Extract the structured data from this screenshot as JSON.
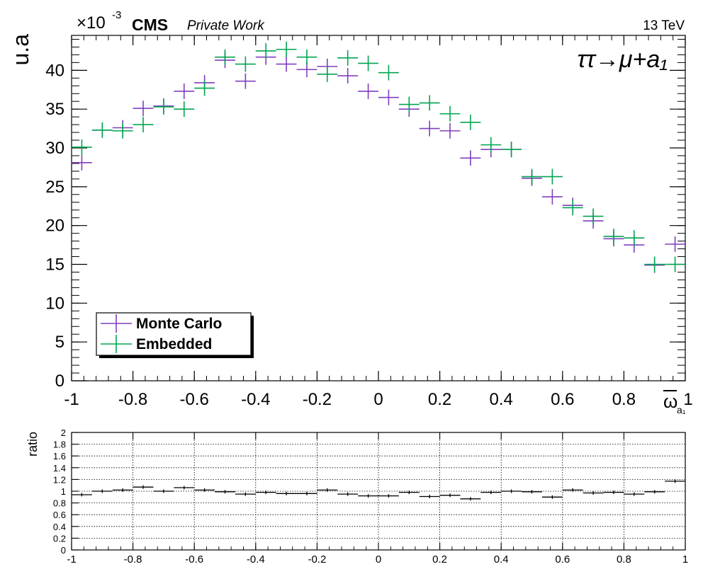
{
  "header": {
    "exponent_base": "×10",
    "exponent_power": "-3",
    "experiment": "CMS",
    "experiment_note": "Private Work",
    "energy": "13 TeV",
    "process_label": "ττ→μ+a₁"
  },
  "colors": {
    "monte_carlo": "#7f3fbf",
    "embedded": "#00a550",
    "ratio": "#000000"
  },
  "chart_data": [
    {
      "type": "scatter",
      "style": "histogram-errorbars",
      "ylabel": "u.a",
      "xlabel_main": "ω",
      "xlabel_sub": "a₁",
      "xlim": [
        -1,
        1
      ],
      "ylim": [
        0,
        44.5
      ],
      "x_ticks": [
        -1,
        -0.8,
        -0.6,
        -0.4,
        -0.2,
        0,
        0.2,
        0.4,
        0.6,
        0.8,
        1
      ],
      "x_tick_labels": [
        "-1",
        "-0.8",
        "-0.6",
        "-0.4",
        "-0.2",
        "0",
        "0.2",
        "0.4",
        "0.6",
        "0.8",
        "1"
      ],
      "y_ticks": [
        0,
        5,
        10,
        15,
        20,
        25,
        30,
        35,
        40
      ],
      "y_tick_labels": [
        "0",
        "5",
        "10",
        "15",
        "20",
        "25",
        "30",
        "35",
        "40"
      ],
      "grid": false,
      "legend_placement": "bottom-left",
      "x": [
        -0.9667,
        -0.9,
        -0.8333,
        -0.7667,
        -0.7,
        -0.6333,
        -0.5667,
        -0.5,
        -0.4333,
        -0.3667,
        -0.3,
        -0.2333,
        -0.1667,
        -0.1,
        -0.0333,
        0.0333,
        0.1,
        0.1667,
        0.2333,
        0.3,
        0.3667,
        0.4333,
        0.5,
        0.5667,
        0.6333,
        0.7,
        0.7667,
        0.8333,
        0.9,
        0.9667
      ],
      "series": [
        {
          "name": "Monte Carlo",
          "values": [
            28.1,
            32.3,
            32.6,
            35.1,
            35.4,
            37.3,
            38.4,
            41.3,
            38.6,
            41.7,
            40.8,
            40.1,
            40.5,
            39.3,
            37.3,
            36.5,
            35.0,
            32.5,
            32.2,
            28.7,
            29.8,
            29.8,
            26.1,
            23.7,
            22.6,
            20.6,
            18.3,
            17.5,
            14.9,
            17.6
          ],
          "errors": [
            1.0,
            1.0,
            1.0,
            1.0,
            1.0,
            1.0,
            1.0,
            1.0,
            1.0,
            1.0,
            1.0,
            1.0,
            1.0,
            1.0,
            1.0,
            1.0,
            1.0,
            1.0,
            1.0,
            1.0,
            1.0,
            1.0,
            1.0,
            1.0,
            1.0,
            1.0,
            1.0,
            1.0,
            1.0,
            1.0
          ]
        },
        {
          "name": "Embedded",
          "values": [
            30.1,
            32.3,
            32.2,
            33.0,
            35.3,
            35.0,
            37.7,
            41.7,
            40.8,
            42.5,
            42.7,
            41.7,
            39.5,
            41.6,
            40.9,
            39.7,
            35.6,
            35.8,
            34.4,
            33.3,
            30.4,
            29.8,
            26.3,
            26.3,
            22.3,
            21.2,
            18.6,
            18.4,
            15.0,
            15.0
          ],
          "errors": [
            1.0,
            1.0,
            1.0,
            1.0,
            1.0,
            1.0,
            1.0,
            1.0,
            1.0,
            1.0,
            1.0,
            1.0,
            1.0,
            1.0,
            1.0,
            1.0,
            1.0,
            1.0,
            1.0,
            1.0,
            1.0,
            1.0,
            1.0,
            1.0,
            1.0,
            1.0,
            1.0,
            1.0,
            1.0,
            1.0
          ]
        }
      ]
    },
    {
      "type": "scatter",
      "style": "histogram-errorbars",
      "ylabel": "ratio",
      "xlim": [
        -1,
        1
      ],
      "ylim": [
        0,
        2
      ],
      "x_ticks": [
        -1,
        -0.8,
        -0.6,
        -0.4,
        -0.2,
        0,
        0.2,
        0.4,
        0.6,
        0.8,
        1
      ],
      "x_tick_labels": [
        "-1",
        "-0.8",
        "-0.6",
        "-0.4",
        "-0.2",
        "0",
        "0.2",
        "0.4",
        "0.6",
        "0.8",
        "1"
      ],
      "y_ticks": [
        0,
        0.2,
        0.4,
        0.6,
        0.8,
        1,
        1.2,
        1.4,
        1.6,
        1.8,
        2
      ],
      "y_tick_labels": [
        "0",
        "0.2",
        "0.4",
        "0.6",
        "0.8",
        "1",
        "1.2",
        "1.4",
        "1.6",
        "1.8",
        "2"
      ],
      "grid": true,
      "x": [
        -0.9667,
        -0.9,
        -0.8333,
        -0.7667,
        -0.7,
        -0.6333,
        -0.5667,
        -0.5,
        -0.4333,
        -0.3667,
        -0.3,
        -0.2333,
        -0.1667,
        -0.1,
        -0.0333,
        0.0333,
        0.1,
        0.1667,
        0.2333,
        0.3,
        0.3667,
        0.4333,
        0.5,
        0.5667,
        0.6333,
        0.7,
        0.7667,
        0.8333,
        0.9,
        0.9667
      ],
      "values": [
        0.94,
        1.0,
        1.02,
        1.07,
        1.0,
        1.06,
        1.02,
        0.99,
        0.95,
        0.98,
        0.96,
        0.96,
        1.02,
        0.95,
        0.92,
        0.92,
        0.98,
        0.91,
        0.93,
        0.87,
        0.98,
        1.0,
        0.99,
        0.9,
        1.02,
        0.97,
        0.98,
        0.95,
        0.99,
        1.17
      ],
      "errors": [
        0.03,
        0.03,
        0.03,
        0.03,
        0.03,
        0.03,
        0.03,
        0.03,
        0.03,
        0.03,
        0.03,
        0.03,
        0.03,
        0.03,
        0.03,
        0.03,
        0.03,
        0.03,
        0.03,
        0.03,
        0.03,
        0.03,
        0.03,
        0.03,
        0.03,
        0.03,
        0.03,
        0.03,
        0.03,
        0.03
      ]
    }
  ]
}
